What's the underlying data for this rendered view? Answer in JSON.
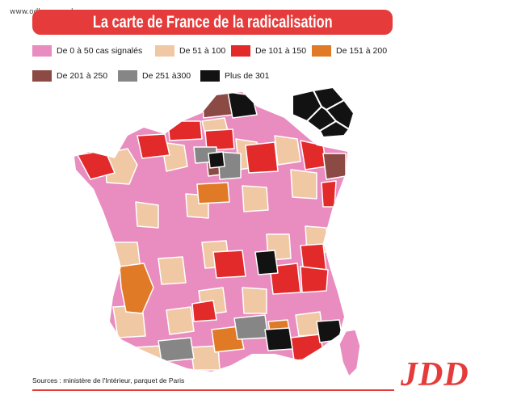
{
  "watermark": "www.odkrywca.pl",
  "title": "La carte de France de la radicalisation",
  "legend": [
    {
      "label": "De 0 à 50 cas signalés",
      "color": "#e98cbf"
    },
    {
      "label": "De 51 à 100",
      "color": "#f0c8a4"
    },
    {
      "label": "De 101 à 150",
      "color": "#e22a2a"
    },
    {
      "label": "De 151 à 200",
      "color": "#e07a26"
    },
    {
      "label": "De 201 à 250",
      "color": "#8b4a44"
    },
    {
      "label": "De 251 à300",
      "color": "#868686"
    },
    {
      "label": "Plus de 301",
      "color": "#121212"
    }
  ],
  "source": "Sources : ministère de l'Intérieur, parquet de Paris",
  "brand": "JDD"
}
